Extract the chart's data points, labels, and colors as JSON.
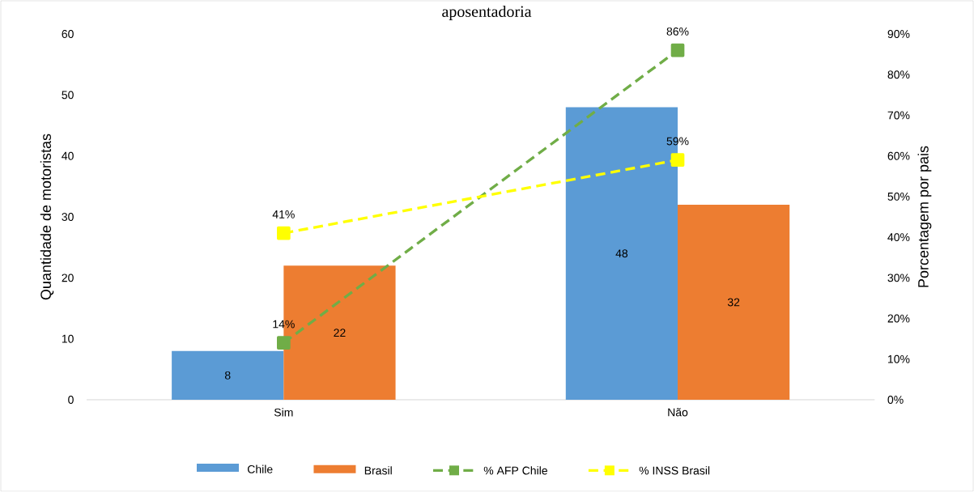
{
  "chart_data": {
    "type": "bar",
    "title": "aposentadoria",
    "ylabel": "Quantidade de motoristas",
    "y2label": "Porcentagem por pais",
    "categories": [
      "Sim",
      "Não"
    ],
    "series": [
      {
        "name": "Chile",
        "color": "#5b9bd5",
        "values": [
          8,
          48
        ],
        "value_labels": [
          "8",
          "48"
        ]
      },
      {
        "name": "Brasil",
        "color": "#ed7d31",
        "values": [
          22,
          32
        ],
        "value_labels": [
          "22",
          "32"
        ]
      },
      {
        "name": "% AFP Chile",
        "type": "line",
        "axis": "y2",
        "color": "#70ad47",
        "values": [
          14,
          86
        ],
        "value_labels": [
          "14%",
          "86%"
        ],
        "marker": "square",
        "line_style": "dashed"
      },
      {
        "name": "% INSS Brasil",
        "type": "line",
        "axis": "y2",
        "color": "#ffff00",
        "values": [
          41,
          59
        ],
        "value_labels": [
          "41%",
          "59%"
        ],
        "marker": "square",
        "line_style": "dashed"
      }
    ],
    "ylim": [
      0,
      60
    ],
    "yticks": [
      0,
      10,
      20,
      30,
      40,
      50,
      60
    ],
    "y2lim": [
      0,
      90
    ],
    "y2ticks": [
      {
        "value": 0,
        "label": "0%"
      },
      {
        "value": 10,
        "label": "10%"
      },
      {
        "value": 20,
        "label": "20%"
      },
      {
        "value": 30,
        "label": "30%"
      },
      {
        "value": 40,
        "label": "40%"
      },
      {
        "value": 50,
        "label": "50%"
      },
      {
        "value": 60,
        "label": "60%"
      },
      {
        "value": 70,
        "label": "70%"
      },
      {
        "value": 80,
        "label": "80%"
      },
      {
        "value": 90,
        "label": "90%"
      }
    ],
    "legend": "bottom",
    "grid": false
  }
}
